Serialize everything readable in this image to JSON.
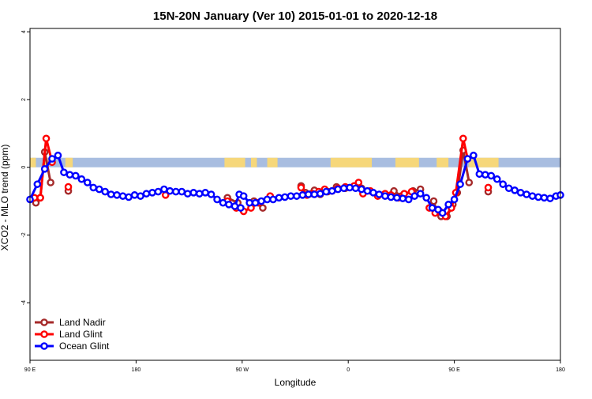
{
  "chart_data": {
    "type": "line",
    "title": "15N-20N January (Ver 10)   2015-01-01 to 2020-12-18",
    "xlabel": "Longitude",
    "ylabel": "XCO2 - MLO trend (ppm)",
    "xlim": [
      0,
      360
    ],
    "ylim": [
      -5.7,
      4.1
    ],
    "x_ticks": [
      {
        "value": 0,
        "label": "90 E"
      },
      {
        "value": 72,
        "label": "180"
      },
      {
        "value": 144,
        "label": "90 W"
      },
      {
        "value": 216,
        "label": "0"
      },
      {
        "value": 288,
        "label": "90 E"
      },
      {
        "value": 360,
        "label": "180"
      }
    ],
    "y_ticks": [
      {
        "value": -4,
        "label": "-4"
      },
      {
        "value": -2,
        "label": "-2"
      },
      {
        "value": 0,
        "label": "0"
      },
      {
        "value": 2,
        "label": "2"
      },
      {
        "value": 4,
        "label": "4"
      }
    ],
    "land_mask_band": {
      "y_range": [
        0,
        0.28
      ],
      "ocean_color": "#a8bde0",
      "land_color": "#f6d77a",
      "land_segments": [
        [
          0,
          4
        ],
        [
          9,
          12
        ],
        [
          24,
          29
        ],
        [
          132,
          146
        ],
        [
          150,
          154
        ],
        [
          161,
          168
        ],
        [
          204,
          232
        ],
        [
          248,
          264
        ],
        [
          276,
          284
        ],
        [
          298,
          318
        ]
      ]
    },
    "legend": {
      "position": "bottom-left"
    },
    "series": [
      {
        "name": "Land Nadir",
        "color": "#a52a2a",
        "segments": [
          [
            [
              4,
              -1.05
            ],
            [
              7,
              -0.9
            ],
            [
              10,
              0.45
            ],
            [
              14,
              -0.45
            ]
          ],
          [
            [
              26,
              -0.7
            ]
          ],
          [
            [
              134,
              -0.9
            ],
            [
              141,
              -1.05
            ]
          ],
          [
            [
              152,
              -1.0
            ],
            [
              158,
              -1.2
            ]
          ],
          [
            [
              184,
              -0.55
            ],
            [
              187,
              -0.75
            ],
            [
              193,
              -0.68
            ],
            [
              197,
              -0.8
            ],
            [
              202,
              -0.72
            ],
            [
              208,
              -0.58
            ],
            [
              214,
              -0.62
            ]
          ],
          [
            [
              225,
              -0.62
            ]
          ],
          [
            [
              247,
              -0.7
            ],
            [
              252,
              -0.85
            ],
            [
              260,
              -0.7
            ],
            [
              265,
              -0.65
            ]
          ],
          [
            [
              274,
              -1.0
            ],
            [
              276,
              -1.3
            ],
            [
              279,
              -1.45
            ],
            [
              283,
              -1.45
            ],
            [
              287,
              -1.1
            ],
            [
              290,
              -0.75
            ],
            [
              294,
              0.5
            ],
            [
              298,
              -0.45
            ]
          ],
          [
            [
              311,
              -0.72
            ]
          ]
        ]
      },
      {
        "name": "Land Glint",
        "color": "#ff0000",
        "segments": [
          [
            [
              3,
              -0.9
            ],
            [
              7,
              -0.9
            ],
            [
              11,
              0.85
            ],
            [
              15,
              0.15
            ]
          ],
          [
            [
              26,
              -0.58
            ]
          ],
          [
            [
              92,
              -0.82
            ]
          ],
          [
            [
              134,
              -1.0
            ],
            [
              140,
              -1.2
            ],
            [
              145,
              -1.3
            ],
            [
              150,
              -1.2
            ],
            [
              155,
              -1.05
            ]
          ],
          [
            [
              163,
              -0.85
            ]
          ],
          [
            [
              184,
              -0.6
            ],
            [
              188,
              -0.82
            ],
            [
              192,
              -0.78
            ],
            [
              196,
              -0.72
            ],
            [
              200,
              -0.65
            ],
            [
              205,
              -0.7
            ],
            [
              209,
              -0.62
            ],
            [
              214,
              -0.58
            ],
            [
              220,
              -0.55
            ],
            [
              223,
              -0.45
            ]
          ],
          [
            [
              226,
              -0.78
            ],
            [
              231,
              -0.7
            ],
            [
              236,
              -0.85
            ],
            [
              241,
              -0.78
            ],
            [
              245,
              -0.82
            ],
            [
              250,
              -0.9
            ],
            [
              254,
              -0.78
            ],
            [
              259,
              -0.72
            ]
          ],
          [
            [
              271,
              -1.2
            ],
            [
              275,
              -1.35
            ],
            [
              278,
              -1.3
            ],
            [
              282,
              -1.45
            ],
            [
              286,
              -1.2
            ],
            [
              289,
              -0.75
            ],
            [
              294,
              0.85
            ],
            [
              297,
              0.25
            ]
          ],
          [
            [
              311,
              -0.6
            ]
          ]
        ]
      },
      {
        "name": "Ocean Glint",
        "color": "#0000ff",
        "segments": [
          [
            [
              0,
              -0.95
            ],
            [
              5,
              -0.5
            ],
            [
              10,
              -0.05
            ],
            [
              15,
              0.25
            ],
            [
              19,
              0.35
            ],
            [
              23,
              -0.15
            ],
            [
              27,
              -0.22
            ],
            [
              31,
              -0.25
            ],
            [
              35,
              -0.35
            ],
            [
              39,
              -0.45
            ],
            [
              43,
              -0.6
            ],
            [
              47,
              -0.65
            ],
            [
              51,
              -0.72
            ],
            [
              55,
              -0.8
            ],
            [
              59,
              -0.82
            ],
            [
              63,
              -0.85
            ],
            [
              67,
              -0.88
            ],
            [
              71,
              -0.82
            ],
            [
              75,
              -0.85
            ],
            [
              79,
              -0.78
            ],
            [
              83,
              -0.75
            ],
            [
              87,
              -0.72
            ],
            [
              91,
              -0.65
            ],
            [
              95,
              -0.7
            ],
            [
              99,
              -0.72
            ],
            [
              103,
              -0.72
            ],
            [
              107,
              -0.78
            ],
            [
              111,
              -0.75
            ],
            [
              115,
              -0.78
            ],
            [
              119,
              -0.75
            ],
            [
              123,
              -0.8
            ],
            [
              127,
              -0.95
            ],
            [
              131,
              -1.05
            ],
            [
              135,
              -1.1
            ],
            [
              139,
              -1.15
            ],
            [
              142,
              -0.8
            ],
            [
              145,
              -0.85
            ],
            [
              149,
              -1.05
            ],
            [
              153,
              -1.05
            ],
            [
              157,
              -1.0
            ],
            [
              161,
              -0.95
            ],
            [
              165,
              -0.95
            ],
            [
              169,
              -0.9
            ],
            [
              173,
              -0.88
            ],
            [
              177,
              -0.85
            ],
            [
              181,
              -0.85
            ],
            [
              185,
              -0.82
            ],
            [
              189,
              -0.8
            ],
            [
              193,
              -0.8
            ],
            [
              197,
              -0.78
            ],
            [
              201,
              -0.72
            ],
            [
              205,
              -0.7
            ],
            [
              209,
              -0.65
            ],
            [
              213,
              -0.62
            ],
            [
              217,
              -0.6
            ],
            [
              221,
              -0.62
            ],
            [
              225,
              -0.65
            ],
            [
              229,
              -0.7
            ],
            [
              233,
              -0.75
            ],
            [
              237,
              -0.8
            ],
            [
              241,
              -0.85
            ],
            [
              245,
              -0.88
            ],
            [
              249,
              -0.9
            ],
            [
              253,
              -0.92
            ],
            [
              257,
              -0.95
            ],
            [
              261,
              -0.85
            ],
            [
              265,
              -0.78
            ],
            [
              269,
              -0.9
            ],
            [
              273,
              -1.2
            ],
            [
              277,
              -1.25
            ],
            [
              280,
              -1.35
            ],
            [
              284,
              -1.1
            ],
            [
              288,
              -0.95
            ],
            [
              292,
              -0.5
            ],
            [
              297,
              0.25
            ],
            [
              301,
              0.35
            ],
            [
              305,
              -0.2
            ],
            [
              309,
              -0.22
            ],
            [
              313,
              -0.25
            ],
            [
              317,
              -0.35
            ],
            [
              321,
              -0.5
            ],
            [
              325,
              -0.62
            ],
            [
              329,
              -0.68
            ],
            [
              333,
              -0.75
            ],
            [
              337,
              -0.8
            ],
            [
              341,
              -0.85
            ],
            [
              345,
              -0.88
            ],
            [
              349,
              -0.9
            ],
            [
              353,
              -0.92
            ],
            [
              357,
              -0.85
            ],
            [
              360,
              -0.82
            ]
          ],
          [
            [
              143,
              -1.2
            ]
          ]
        ]
      }
    ]
  }
}
